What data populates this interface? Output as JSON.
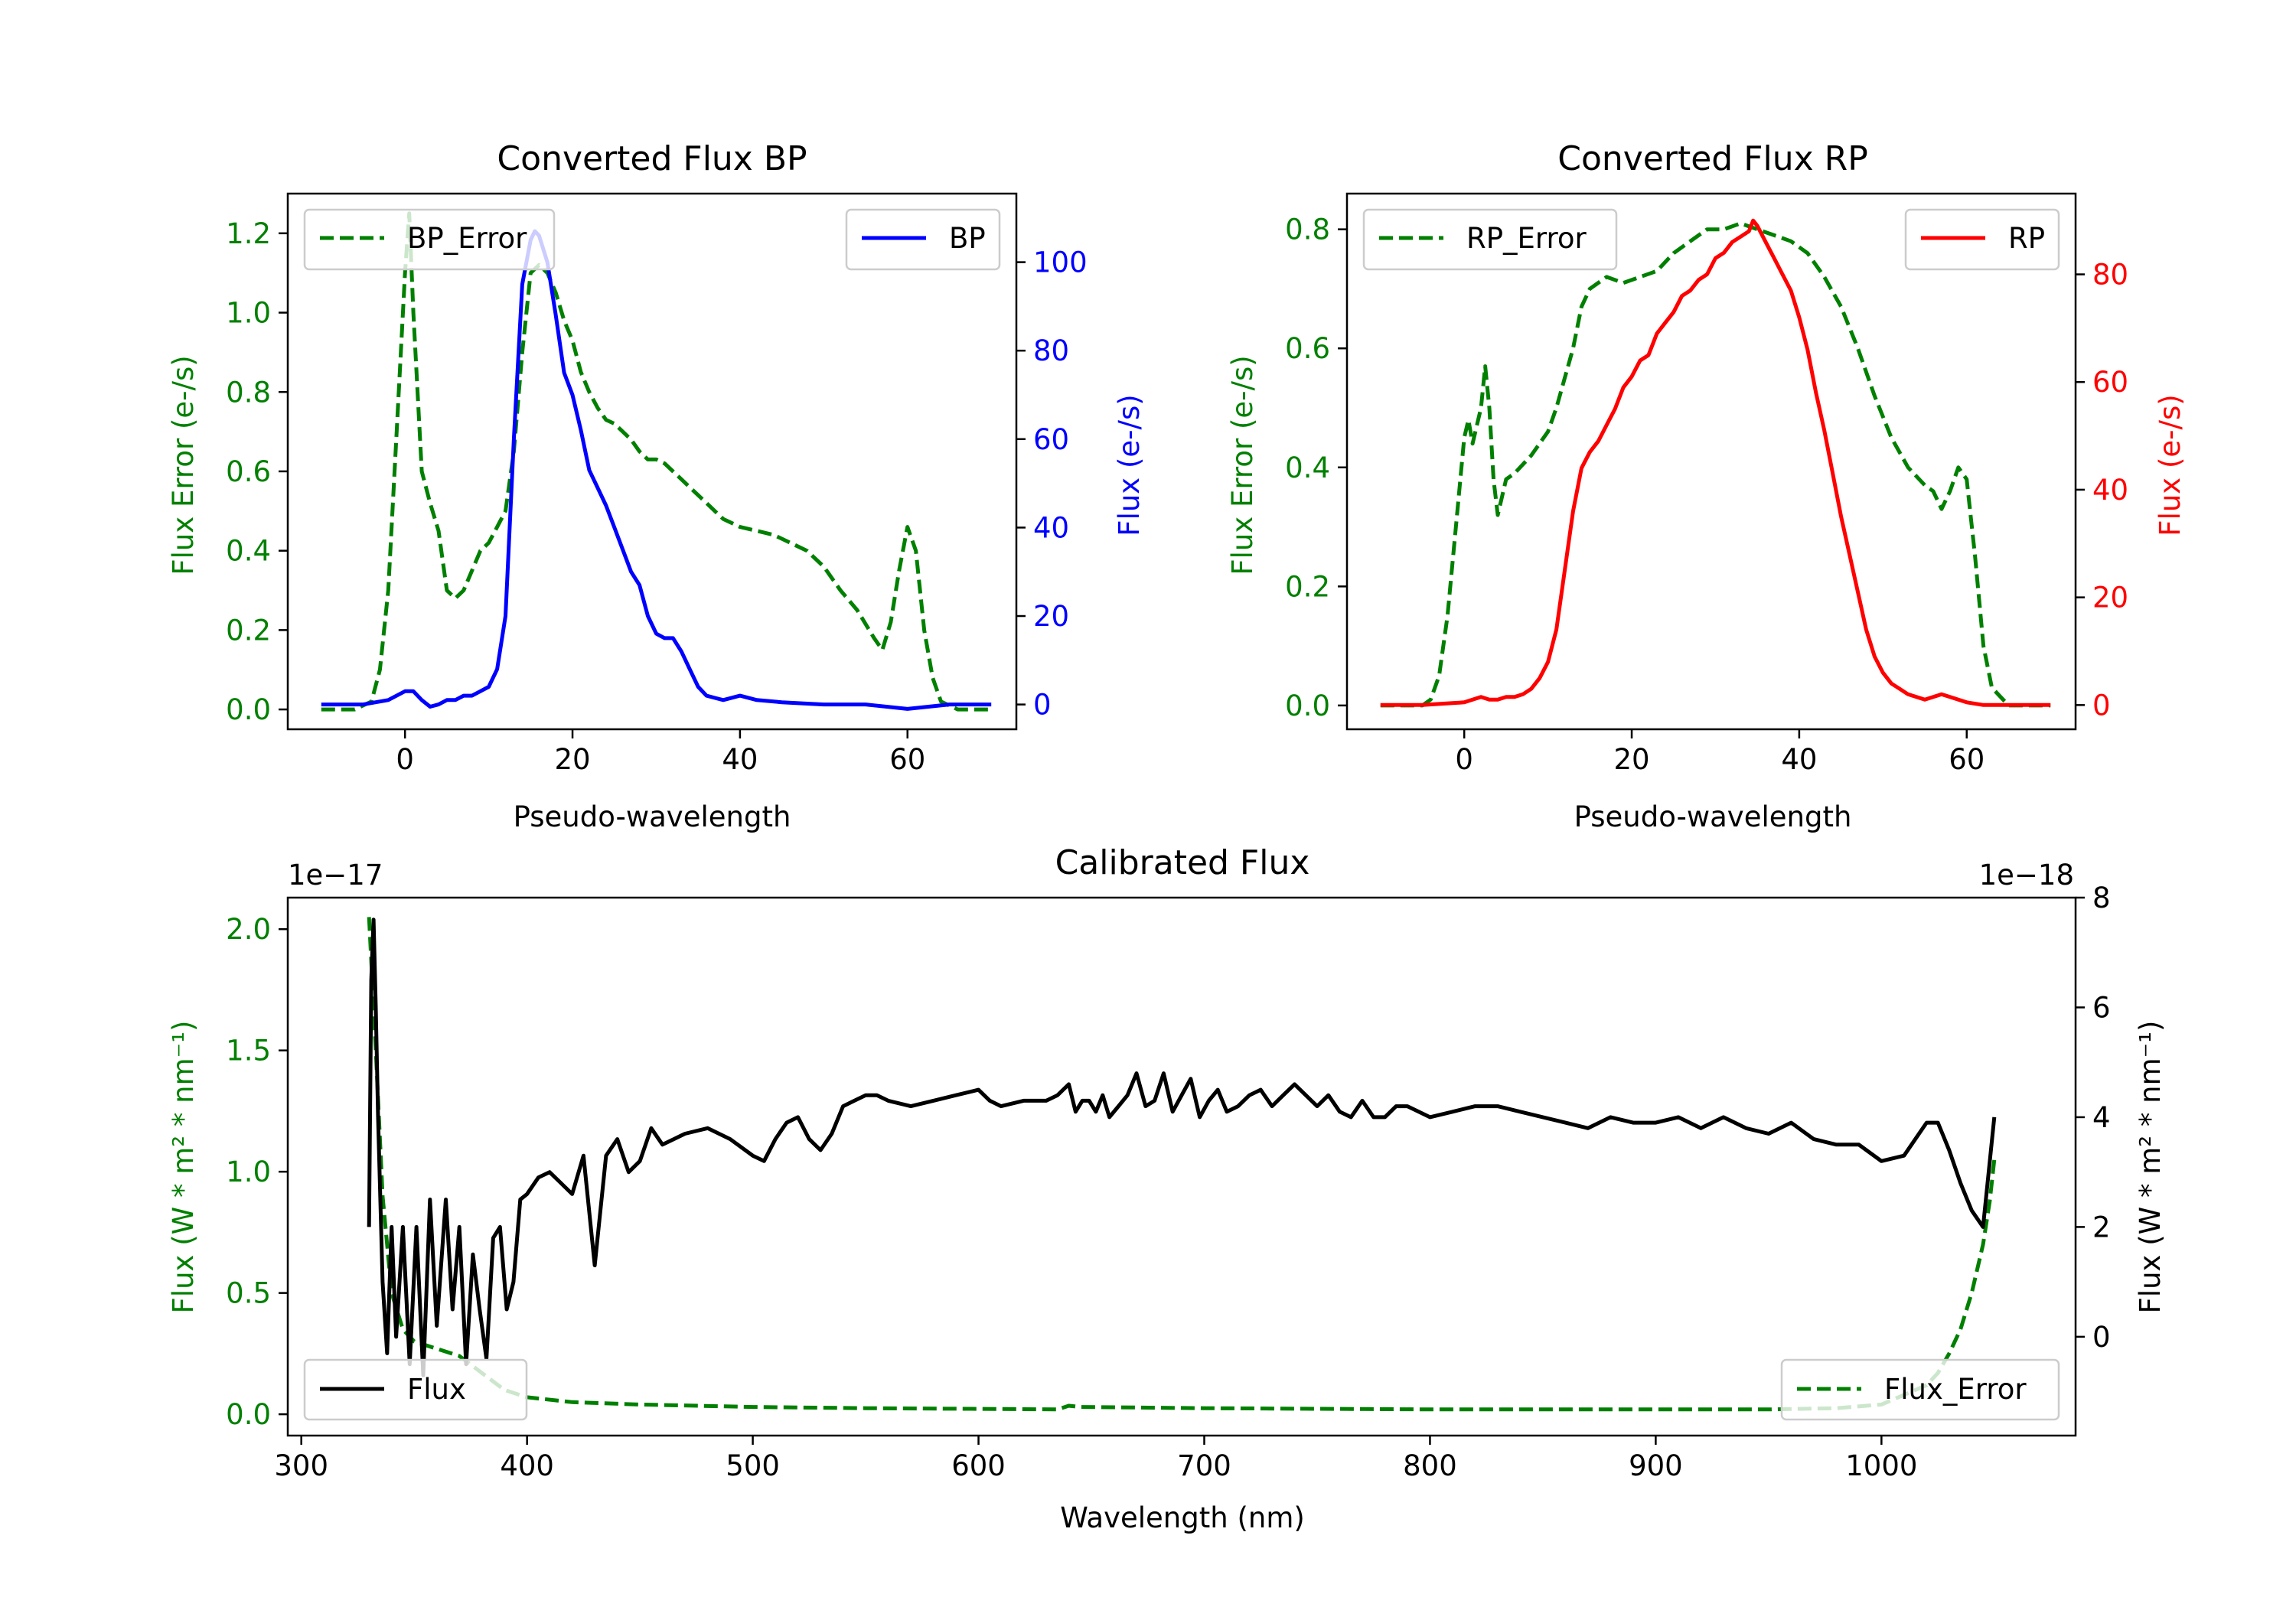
{
  "chart_data": [
    {
      "id": "bp",
      "type": "line",
      "title": "Converted Flux BP",
      "xlabel": "Pseudo-wavelength",
      "ylabel_left": "Flux Error (e-/s)",
      "ylabel_right": "Flux (e-/s)",
      "xlim": [
        -14,
        73
      ],
      "ylim_left": [
        -0.05,
        1.3
      ],
      "ylim_right": [
        -5.6,
        115.5
      ],
      "xticks": [
        0,
        20,
        40,
        60
      ],
      "yticks_left": [
        0.0,
        0.2,
        0.4,
        0.6,
        0.8,
        1.0,
        1.2
      ],
      "yticks_right": [
        0,
        20,
        40,
        60,
        80,
        100
      ],
      "left_color": "#008000",
      "right_color": "#0000ff",
      "legend_left": "top-left",
      "legend_right": "top-right",
      "series": [
        {
          "name": "BP_Error",
          "axis": "left",
          "style": "dashed",
          "color": "#008000",
          "x": [
            -10,
            -6,
            -4,
            -3,
            -2,
            -1,
            0,
            0.5,
            1,
            2,
            3,
            4,
            5,
            6,
            7,
            8,
            9,
            10,
            11,
            12,
            13,
            14,
            15,
            16,
            17,
            18,
            19,
            20,
            21,
            22,
            23,
            24,
            25,
            26,
            27,
            28,
            29,
            30,
            31,
            32,
            33,
            34,
            35,
            36,
            38,
            40,
            42,
            44,
            46,
            48,
            50,
            52,
            54,
            56,
            57,
            58,
            59,
            60,
            61,
            62,
            63,
            64,
            66,
            68,
            70
          ],
          "y": [
            0.0,
            0.0,
            0.02,
            0.1,
            0.3,
            0.7,
            1.1,
            1.25,
            1.0,
            0.6,
            0.52,
            0.45,
            0.3,
            0.28,
            0.3,
            0.35,
            0.4,
            0.42,
            0.46,
            0.5,
            0.65,
            0.9,
            1.1,
            1.12,
            1.1,
            1.05,
            0.98,
            0.93,
            0.85,
            0.8,
            0.76,
            0.73,
            0.72,
            0.7,
            0.68,
            0.65,
            0.63,
            0.63,
            0.62,
            0.6,
            0.58,
            0.56,
            0.54,
            0.52,
            0.48,
            0.46,
            0.45,
            0.44,
            0.42,
            0.4,
            0.36,
            0.3,
            0.25,
            0.18,
            0.15,
            0.22,
            0.35,
            0.46,
            0.4,
            0.2,
            0.08,
            0.02,
            0.0,
            0.0,
            0.0
          ]
        },
        {
          "name": "BP",
          "axis": "right",
          "style": "solid",
          "color": "#0000ff",
          "x": [
            -10,
            -5,
            -2,
            0,
            1,
            2,
            3,
            4,
            5,
            6,
            7,
            8,
            9,
            10,
            11,
            12,
            13,
            14,
            15,
            15.5,
            16,
            17,
            18,
            19,
            20,
            21,
            22,
            23,
            24,
            25,
            26,
            27,
            28,
            29,
            30,
            31,
            32,
            33,
            34,
            35,
            36,
            37,
            38,
            40,
            42,
            45,
            50,
            55,
            60,
            65,
            70
          ],
          "y": [
            0,
            0,
            1,
            3,
            3,
            1,
            -0.5,
            0,
            1,
            1,
            2,
            2,
            3,
            4,
            8,
            20,
            60,
            95,
            105,
            107,
            106,
            100,
            88,
            75,
            70,
            62,
            53,
            49,
            45,
            40,
            35,
            30,
            27,
            20,
            16,
            15,
            15,
            12,
            8,
            4,
            2,
            1.5,
            1,
            2,
            1,
            0.5,
            0,
            0,
            -1,
            0,
            0
          ]
        }
      ]
    },
    {
      "id": "rp",
      "type": "line",
      "title": "Converted Flux RP",
      "xlabel": "Pseudo-wavelength",
      "ylabel_left": "Flux Error (e-/s)",
      "ylabel_right": "Flux (e-/s)",
      "xlim": [
        -14,
        73
      ],
      "ylim_left": [
        -0.04,
        0.86
      ],
      "ylim_right": [
        -4.5,
        95
      ],
      "xticks": [
        0,
        20,
        40,
        60
      ],
      "yticks_left": [
        0.0,
        0.2,
        0.4,
        0.6,
        0.8
      ],
      "yticks_right": [
        0,
        20,
        40,
        60,
        80
      ],
      "left_color": "#008000",
      "right_color": "#ff0000",
      "legend_left": "top-left",
      "legend_right": "top-right",
      "series": [
        {
          "name": "RP_Error",
          "axis": "left",
          "style": "dashed",
          "color": "#008000",
          "x": [
            -10,
            -5,
            -4,
            -3,
            -2,
            -1,
            0,
            0.5,
            1,
            2,
            2.5,
            3,
            3.5,
            4,
            5,
            6,
            8,
            10,
            11,
            12,
            13,
            14,
            15,
            17,
            19,
            21,
            23,
            25,
            27,
            29,
            31,
            33,
            35,
            37,
            39,
            41,
            43,
            45,
            47,
            49,
            51,
            53,
            55,
            56,
            57,
            58,
            59,
            60,
            61,
            62,
            63,
            65,
            70
          ],
          "y": [
            0.0,
            0.0,
            0.01,
            0.05,
            0.15,
            0.3,
            0.45,
            0.48,
            0.44,
            0.5,
            0.57,
            0.5,
            0.38,
            0.32,
            0.38,
            0.39,
            0.42,
            0.46,
            0.5,
            0.55,
            0.6,
            0.67,
            0.7,
            0.72,
            0.71,
            0.72,
            0.73,
            0.76,
            0.78,
            0.8,
            0.8,
            0.81,
            0.8,
            0.79,
            0.78,
            0.76,
            0.72,
            0.67,
            0.6,
            0.52,
            0.45,
            0.4,
            0.37,
            0.36,
            0.33,
            0.36,
            0.4,
            0.38,
            0.25,
            0.1,
            0.03,
            0.0,
            0.0
          ]
        },
        {
          "name": "RP",
          "axis": "right",
          "style": "solid",
          "color": "#ff0000",
          "x": [
            -10,
            -5,
            0,
            1,
            2,
            3,
            4,
            5,
            6,
            7,
            8,
            9,
            10,
            11,
            12,
            13,
            14,
            15,
            16,
            17,
            18,
            19,
            20,
            21,
            22,
            23,
            24,
            25,
            26,
            27,
            28,
            29,
            30,
            31,
            32,
            33,
            34,
            34.5,
            35,
            36,
            37,
            38,
            39,
            40,
            41,
            42,
            43,
            44,
            45,
            46,
            47,
            48,
            49,
            50,
            51,
            52,
            53,
            54,
            55,
            56,
            57,
            58,
            59,
            60,
            62,
            65,
            70
          ],
          "y": [
            0,
            0,
            0.5,
            1,
            1.5,
            1,
            1,
            1.5,
            1.5,
            2,
            3,
            5,
            8,
            14,
            25,
            36,
            44,
            47,
            49,
            52,
            55,
            59,
            61,
            64,
            65,
            69,
            71,
            73,
            76,
            77,
            79,
            80,
            83,
            84,
            86,
            87,
            88,
            90,
            89,
            86,
            83,
            80,
            77,
            72,
            66,
            58,
            51,
            43,
            35,
            28,
            21,
            14,
            9,
            6,
            4,
            3,
            2,
            1.5,
            1,
            1.5,
            2,
            1.5,
            1,
            0.5,
            0,
            0,
            0
          ]
        }
      ]
    },
    {
      "id": "cal",
      "type": "line",
      "title": "Calibrated Flux",
      "xlabel": "Wavelength (nm)",
      "ylabel_left": "Flux (W * m² * nm⁻¹)",
      "ylabel_right": "Flux (W * m² * nm⁻¹)",
      "offset_left": "1e−17",
      "offset_right": "1e−18",
      "xlim": [
        294,
        1086
      ],
      "ylim_left": [
        -0.088,
        2.13
      ],
      "ylim_right": [
        -1.8,
        8.0
      ],
      "xticks": [
        300,
        400,
        500,
        600,
        700,
        800,
        900,
        1000
      ],
      "yticks_left": [
        0.0,
        0.5,
        1.0,
        1.5,
        2.0
      ],
      "yticks_right": [
        0,
        2,
        4,
        6,
        8
      ],
      "left_color": "#008000",
      "right_color": "#000000",
      "legend_left": "lower-left",
      "legend_right": "lower-right",
      "series": [
        {
          "name": "Flux_Error",
          "axis": "left",
          "style": "dashed",
          "color": "#008000",
          "x": [
            330,
            333,
            336,
            340,
            345,
            350,
            360,
            370,
            380,
            390,
            400,
            420,
            450,
            500,
            550,
            600,
            635,
            640,
            645,
            700,
            800,
            900,
            950,
            980,
            1000,
            1010,
            1020,
            1025,
            1030,
            1035,
            1040,
            1045,
            1048,
            1050
          ],
          "y": [
            2.05,
            1.5,
            0.9,
            0.5,
            0.35,
            0.3,
            0.27,
            0.24,
            0.17,
            0.1,
            0.07,
            0.05,
            0.04,
            0.03,
            0.025,
            0.022,
            0.02,
            0.035,
            0.03,
            0.025,
            0.02,
            0.02,
            0.02,
            0.025,
            0.04,
            0.08,
            0.12,
            0.17,
            0.25,
            0.35,
            0.5,
            0.7,
            0.88,
            1.05
          ]
        },
        {
          "name": "Flux",
          "axis": "right",
          "style": "solid",
          "color": "#000000",
          "x": [
            330,
            331,
            332,
            333,
            334,
            336,
            338,
            340,
            342,
            345,
            348,
            351,
            354,
            357,
            360,
            364,
            367,
            370,
            373,
            376,
            379,
            382,
            385,
            388,
            391,
            394,
            397,
            400,
            405,
            410,
            415,
            420,
            425,
            430,
            435,
            440,
            445,
            450,
            455,
            460,
            465,
            470,
            480,
            490,
            500,
            505,
            510,
            515,
            520,
            525,
            530,
            535,
            540,
            545,
            550,
            555,
            560,
            570,
            580,
            590,
            600,
            605,
            610,
            620,
            630,
            635,
            640,
            643,
            646,
            649,
            652,
            655,
            658,
            662,
            666,
            670,
            674,
            678,
            682,
            686,
            690,
            694,
            698,
            702,
            706,
            710,
            715,
            720,
            725,
            730,
            735,
            740,
            745,
            750,
            755,
            760,
            765,
            770,
            775,
            780,
            785,
            790,
            795,
            800,
            810,
            820,
            830,
            840,
            850,
            860,
            870,
            880,
            890,
            900,
            910,
            920,
            930,
            940,
            950,
            960,
            970,
            980,
            990,
            1000,
            1010,
            1015,
            1020,
            1025,
            1030,
            1035,
            1040,
            1045,
            1050
          ],
          "y": [
            2.0,
            6.5,
            7.6,
            6.0,
            4.0,
            1.0,
            -0.3,
            2.0,
            0.0,
            2.0,
            -0.5,
            2.0,
            -0.7,
            2.5,
            0.2,
            2.5,
            0.5,
            2.0,
            -0.5,
            1.5,
            0.5,
            -0.4,
            1.8,
            2.0,
            0.5,
            1.0,
            2.5,
            2.6,
            2.9,
            3.0,
            2.8,
            2.6,
            3.3,
            1.3,
            3.3,
            3.6,
            3.0,
            3.2,
            3.8,
            3.5,
            3.6,
            3.7,
            3.8,
            3.6,
            3.3,
            3.2,
            3.6,
            3.9,
            4.0,
            3.6,
            3.4,
            3.7,
            4.2,
            4.3,
            4.4,
            4.4,
            4.3,
            4.2,
            4.3,
            4.4,
            4.5,
            4.3,
            4.2,
            4.3,
            4.3,
            4.4,
            4.6,
            4.1,
            4.3,
            4.3,
            4.1,
            4.4,
            4.0,
            4.2,
            4.4,
            4.8,
            4.2,
            4.3,
            4.8,
            4.1,
            4.4,
            4.7,
            4.0,
            4.3,
            4.5,
            4.1,
            4.2,
            4.4,
            4.5,
            4.2,
            4.4,
            4.6,
            4.4,
            4.2,
            4.4,
            4.1,
            4.0,
            4.3,
            4.0,
            4.0,
            4.2,
            4.2,
            4.1,
            4.0,
            4.1,
            4.2,
            4.2,
            4.1,
            4.0,
            3.9,
            3.8,
            4.0,
            3.9,
            3.9,
            4.0,
            3.8,
            4.0,
            3.8,
            3.7,
            3.9,
            3.6,
            3.5,
            3.5,
            3.2,
            3.3,
            3.6,
            3.9,
            3.9,
            3.4,
            2.8,
            2.3,
            2.0,
            4.0
          ]
        }
      ]
    }
  ]
}
